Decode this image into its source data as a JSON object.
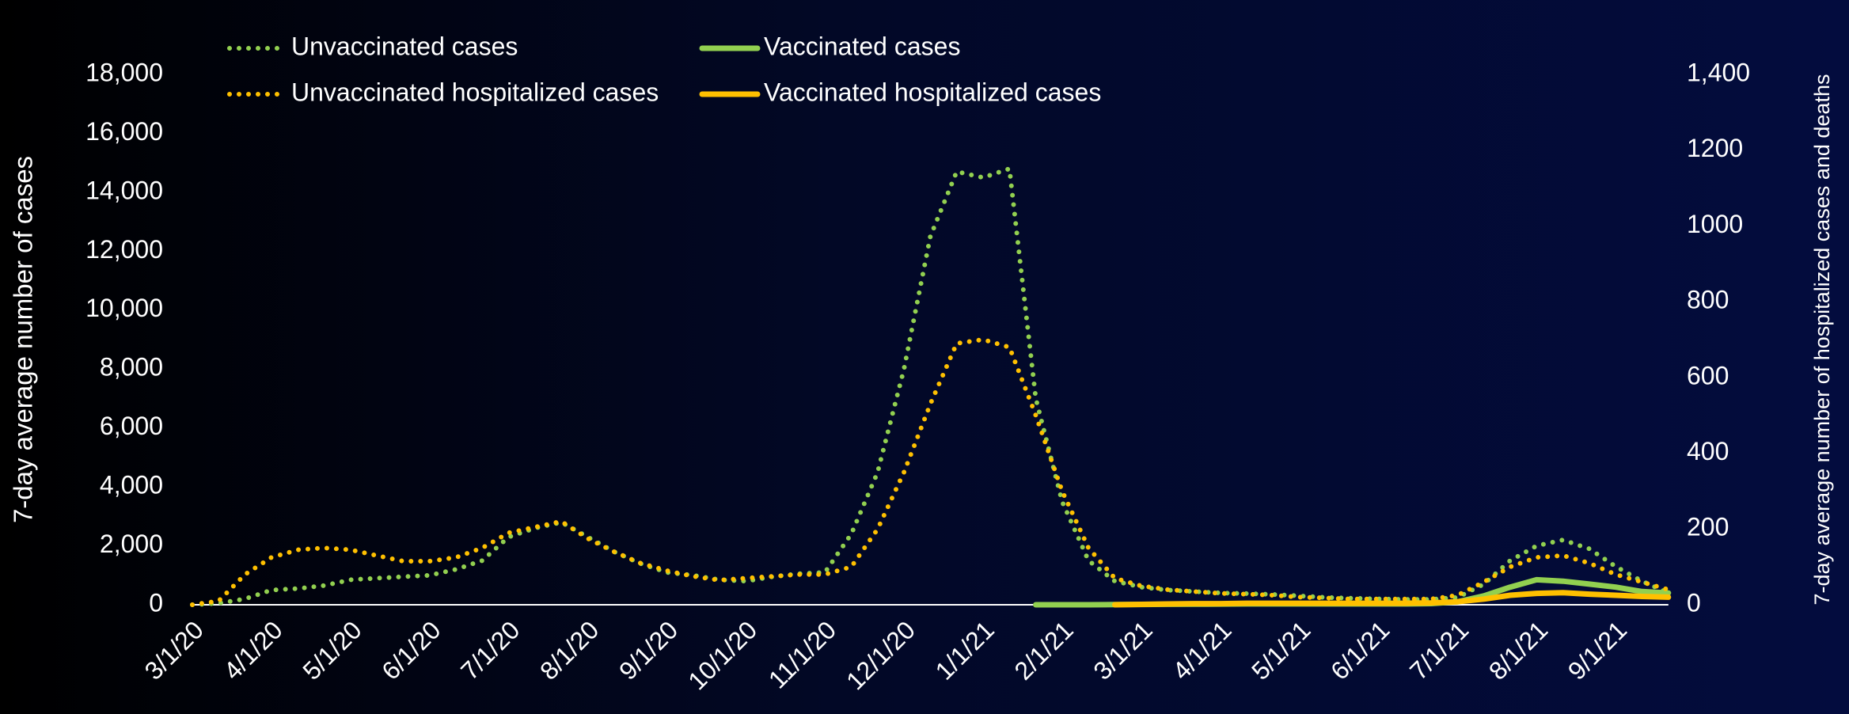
{
  "chart_data": {
    "type": "line",
    "ylabel": "7-day average number of cases",
    "y2label": "7-day average number of hospitalized cases and deaths",
    "categories": [
      "3/1/20",
      null,
      null,
      "4/1/20",
      null,
      null,
      "5/1/20",
      null,
      null,
      "6/1/20",
      null,
      null,
      "7/1/20",
      null,
      null,
      "8/1/20",
      null,
      null,
      "9/1/20",
      null,
      null,
      "10/1/20",
      null,
      null,
      "11/1/20",
      null,
      null,
      "12/1/20",
      null,
      null,
      "1/1/21",
      null,
      null,
      "2/1/21",
      null,
      null,
      "3/1/21",
      null,
      null,
      "4/1/21",
      null,
      null,
      "5/1/21",
      null,
      null,
      "6/1/21",
      null,
      null,
      "7/1/21",
      null,
      null,
      "8/1/21",
      null,
      null,
      "9/1/21",
      null,
      null
    ],
    "ylim": [
      0,
      18000
    ],
    "yticks": [
      0,
      {
        "value": 2000,
        "label": "2,000"
      },
      {
        "value": 4000,
        "label": "4,000"
      },
      {
        "value": 6000,
        "label": "6,000"
      },
      {
        "value": 8000,
        "label": "8,000"
      },
      {
        "value": 10000,
        "label": "10,000"
      },
      {
        "value": 12000,
        "label": "12,000"
      },
      {
        "value": 14000,
        "label": "14,000"
      },
      {
        "value": 16000,
        "label": "16,000"
      },
      {
        "value": 18000,
        "label": "18,000"
      }
    ],
    "y2lim": [
      0,
      1400
    ],
    "y2ticks": [
      0,
      200,
      400,
      600,
      800,
      1000,
      1200,
      {
        "value": 1400,
        "label": "1,400"
      }
    ],
    "legend": "top-left",
    "series": [
      {
        "name": "Unvaccinated cases",
        "color": "#92d050",
        "style": "dotted",
        "axis": "y",
        "values": [
          0,
          50,
          200,
          500,
          550,
          650,
          850,
          900,
          950,
          1000,
          1200,
          1500,
          2300,
          2600,
          2800,
          2300,
          1800,
          1400,
          1100,
          1000,
          850,
          800,
          950,
          1050,
          1100,
          2400,
          4500,
          8000,
          12500,
          14700,
          14500,
          14800,
          7000,
          3500,
          1500,
          800,
          600,
          500,
          450,
          400,
          380,
          350,
          300,
          250,
          220,
          200,
          180,
          180,
          250,
          700,
          1500,
          2000,
          2200,
          1900,
          1300,
          800,
          400
        ]
      },
      {
        "name": "Vaccinated cases",
        "color": "#92d050",
        "style": "solid",
        "axis": "y",
        "values": [
          null,
          null,
          null,
          null,
          null,
          null,
          null,
          null,
          null,
          null,
          null,
          null,
          null,
          null,
          null,
          null,
          null,
          null,
          null,
          null,
          null,
          null,
          null,
          null,
          null,
          null,
          null,
          null,
          null,
          null,
          null,
          null,
          0,
          0,
          0,
          5,
          10,
          15,
          20,
          25,
          30,
          30,
          30,
          30,
          30,
          30,
          30,
          40,
          100,
          300,
          600,
          850,
          800,
          700,
          600,
          450,
          400
        ]
      },
      {
        "name": "Unvaccinated hospitalized cases",
        "color": "#ffc000",
        "style": "dotted",
        "axis": "y2",
        "values": [
          0,
          10,
          80,
          125,
          145,
          150,
          145,
          130,
          115,
          115,
          125,
          150,
          190,
          205,
          220,
          175,
          140,
          110,
          90,
          75,
          65,
          70,
          75,
          80,
          80,
          100,
          200,
          350,
          530,
          690,
          700,
          680,
          500,
          300,
          150,
          70,
          50,
          40,
          35,
          30,
          28,
          25,
          20,
          18,
          15,
          15,
          15,
          15,
          25,
          60,
          100,
          125,
          130,
          110,
          80,
          60,
          40
        ]
      },
      {
        "name": "Vaccinated hospitalized cases",
        "color": "#ffc000",
        "style": "solid",
        "axis": "y2",
        "values": [
          null,
          null,
          null,
          null,
          null,
          null,
          null,
          null,
          null,
          null,
          null,
          null,
          null,
          null,
          null,
          null,
          null,
          null,
          null,
          null,
          null,
          null,
          null,
          null,
          null,
          null,
          null,
          null,
          null,
          null,
          null,
          null,
          null,
          null,
          null,
          0,
          1,
          2,
          3,
          3,
          4,
          4,
          4,
          4,
          4,
          4,
          4,
          5,
          8,
          15,
          25,
          30,
          32,
          28,
          25,
          22,
          20
        ]
      }
    ]
  }
}
